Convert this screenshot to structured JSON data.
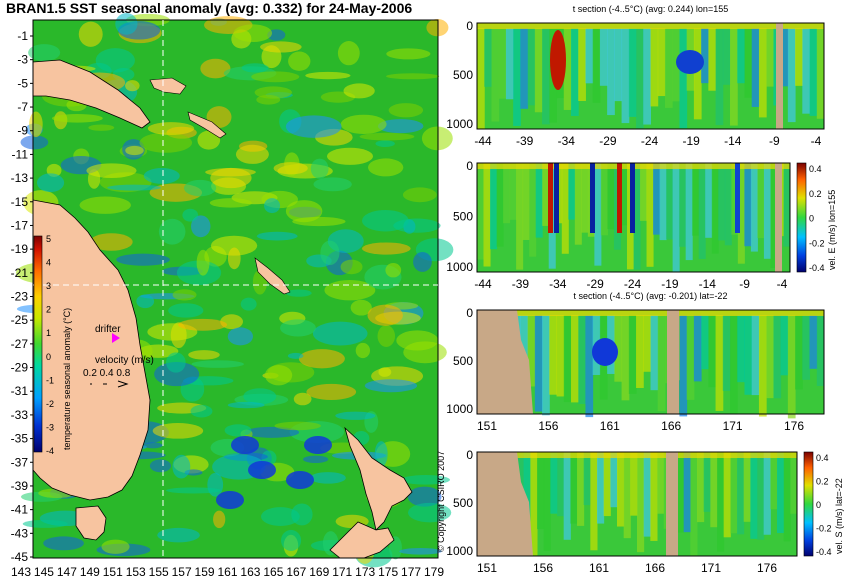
{
  "map": {
    "title": "BRAN1.5 SST seasonal anomaly (avg: 0.332) for 24-May-2006",
    "lat_ticks": [
      "-1",
      "-3",
      "-5",
      "-7",
      "-9",
      "-11",
      "-13",
      "-15",
      "-17",
      "-19",
      "-21",
      "-23",
      "-25",
      "-27",
      "-29",
      "-31",
      "-33",
      "-35",
      "-37",
      "-39",
      "-41",
      "-43",
      "-45"
    ],
    "lon_ticks": [
      "143",
      "145",
      "147",
      "149",
      "151",
      "153",
      "155",
      "157",
      "159",
      "161",
      "163",
      "165",
      "167",
      "169",
      "171",
      "173",
      "175",
      "177",
      "179"
    ],
    "colorbar": {
      "label": "temperature seasonal anomaly (°C)",
      "ticks": [
        "5",
        "4",
        "3",
        "2",
        "1",
        "0",
        "-1",
        "-2",
        "-3",
        "-4"
      ]
    },
    "drifter_label": "drifter",
    "velocity_label": "velocity (m/s)",
    "velocity_scale": "0.2 0.4 0.8",
    "copyright": "© Copyright CSIRO 2007"
  },
  "sections": [
    {
      "title": "t section (-4..5°C) (avg: 0.244) lon=155",
      "side_label": "",
      "y_ticks": [
        "0",
        "500",
        "1000"
      ],
      "x_ticks": [
        "-44",
        "-39",
        "-34",
        "-29",
        "-24",
        "-19",
        "-14",
        "-9",
        "-4"
      ],
      "colorbar_ticks": []
    },
    {
      "title": "",
      "side_label": "vel. E (m/s) lon=155",
      "y_ticks": [
        "0",
        "500",
        "1000"
      ],
      "x_ticks": [
        "-44",
        "-39",
        "-34",
        "-29",
        "-24",
        "-19",
        "-14",
        "-9",
        "-4"
      ],
      "colorbar_ticks": [
        "0.4",
        "0.2",
        "0",
        "-0.2",
        "-0.4"
      ]
    },
    {
      "title": "t section (-4..5°C) (avg: -0.201) lat=-22",
      "side_label": "",
      "y_ticks": [
        "0",
        "500",
        "1000"
      ],
      "x_ticks": [
        "151",
        "156",
        "161",
        "166",
        "171",
        "176"
      ],
      "colorbar_ticks": []
    },
    {
      "title": "",
      "side_label": "vel. S (m/s) lat=-22",
      "y_ticks": [
        "0",
        "500",
        "1000"
      ],
      "x_ticks": [
        "151",
        "156",
        "161",
        "166",
        "171",
        "176"
      ],
      "colorbar_ticks": [
        "0.4",
        "0.2",
        "0",
        "-0.2",
        "-0.4"
      ]
    }
  ],
  "chart_data": [
    {
      "type": "heatmap",
      "title": "BRAN1.5 SST seasonal anomaly (avg: 0.332) for 24-May-2006",
      "xlabel": "",
      "ylabel": "",
      "xlim": [
        143,
        180
      ],
      "ylim": [
        -45,
        0
      ],
      "colorbar_label": "temperature seasonal anomaly (°C)",
      "clim": [
        -4,
        5
      ]
    },
    {
      "type": "heatmap",
      "title": "t section (-4..5°C) (avg: 0.244) lon=155",
      "xlim": [
        -45,
        -1
      ],
      "ylim": [
        1050,
        0
      ],
      "clim": [
        -4,
        5
      ]
    },
    {
      "type": "heatmap",
      "title": "",
      "colorbar_label": "vel. E (m/s) lon=155",
      "xlim": [
        -45,
        -1
      ],
      "ylim": [
        1050,
        0
      ],
      "clim": [
        -0.4,
        0.4
      ]
    },
    {
      "type": "heatmap",
      "title": "t section (-4..5°C) (avg: -0.201) lat=-22",
      "xlim": [
        150,
        180
      ],
      "ylim": [
        1050,
        0
      ],
      "clim": [
        -4,
        5
      ]
    },
    {
      "type": "heatmap",
      "title": "",
      "colorbar_label": "vel. S (m/s) lat=-22",
      "xlim": [
        150,
        180
      ],
      "ylim": [
        1050,
        0
      ],
      "clim": [
        -0.4,
        0.4
      ]
    }
  ]
}
